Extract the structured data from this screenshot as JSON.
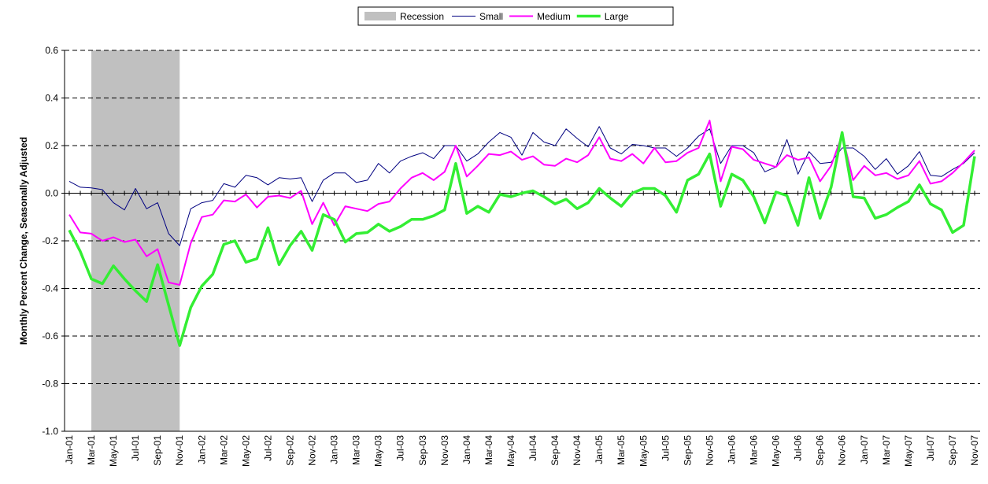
{
  "chart_data": {
    "type": "line",
    "ylabel": "Monthly Percent Change, Seasonally Adjusted",
    "categories": [
      "Jan-01",
      null,
      "Mar-01",
      null,
      "May-01",
      null,
      "Jul-01",
      null,
      "Sep-01",
      null,
      "Nov-01",
      null,
      "Jan-02",
      null,
      "Mar-02",
      null,
      "May-02",
      null,
      "Jul-02",
      null,
      "Sep-02",
      null,
      "Nov-02",
      null,
      "Jan-03",
      null,
      "Mar-03",
      null,
      "May-03",
      null,
      "Jul-03",
      null,
      "Sep-03",
      null,
      "Nov-03",
      null,
      "Jan-04",
      null,
      "Mar-04",
      null,
      "May-04",
      null,
      "Jul-04",
      null,
      "Sep-04",
      null,
      "Nov-04",
      null,
      "Jan-05",
      null,
      "Mar-05",
      null,
      "May-05",
      null,
      "Jul-05",
      null,
      "Sep-05",
      null,
      "Nov-05",
      null,
      "Jan-06",
      null,
      "Mar-06",
      null,
      "May-06",
      null,
      "Jul-06",
      null,
      "Sep-06",
      null,
      "Nov-06",
      null,
      "Jan-07",
      null,
      "Mar-07",
      null,
      "May-07",
      null,
      "Jul-07",
      null,
      "Sep-07",
      null,
      "Nov-07"
    ],
    "shading": {
      "name": "Recession",
      "color": "#c0c0c0",
      "start": "Mar-01",
      "end": "Nov-01"
    },
    "series": [
      {
        "name": "Small",
        "color": "#000080",
        "width": 1,
        "values": [
          0.05,
          0.025,
          0.022,
          0.015,
          -0.04,
          -0.07,
          0.02,
          -0.065,
          -0.04,
          -0.17,
          -0.22,
          -0.065,
          -0.04,
          -0.03,
          0.04,
          0.025,
          0.075,
          0.065,
          0.035,
          0.065,
          0.06,
          0.065,
          -0.035,
          0.055,
          0.085,
          0.085,
          0.045,
          0.055,
          0.125,
          0.085,
          0.135,
          0.155,
          0.17,
          0.145,
          0.2,
          0.2,
          0.135,
          0.165,
          0.215,
          0.255,
          0.235,
          0.16,
          0.255,
          0.215,
          0.2,
          0.27,
          0.23,
          0.195,
          0.28,
          0.19,
          0.165,
          0.205,
          0.2,
          0.19,
          0.19,
          0.155,
          0.19,
          0.24,
          0.27,
          0.125,
          0.2,
          0.2,
          0.17,
          0.09,
          0.11,
          0.225,
          0.08,
          0.175,
          0.125,
          0.13,
          0.19,
          0.19,
          0.155,
          0.1,
          0.145,
          0.08,
          0.115,
          0.175,
          0.075,
          0.07,
          0.1,
          0.125,
          0.17
        ]
      },
      {
        "name": "Medium",
        "color": "#ff00ff",
        "width": 2,
        "values": [
          -0.09,
          -0.165,
          -0.17,
          -0.2,
          -0.185,
          -0.205,
          -0.195,
          -0.265,
          -0.235,
          -0.375,
          -0.385,
          -0.21,
          -0.1,
          -0.09,
          -0.03,
          -0.035,
          -0.005,
          -0.06,
          -0.015,
          -0.01,
          -0.02,
          0.01,
          -0.13,
          -0.04,
          -0.135,
          -0.055,
          -0.065,
          -0.075,
          -0.045,
          -0.035,
          0.02,
          0.065,
          0.085,
          0.055,
          0.09,
          0.2,
          0.07,
          0.115,
          0.165,
          0.16,
          0.175,
          0.14,
          0.155,
          0.12,
          0.115,
          0.145,
          0.13,
          0.16,
          0.235,
          0.145,
          0.135,
          0.165,
          0.125,
          0.19,
          0.13,
          0.135,
          0.17,
          0.19,
          0.305,
          0.05,
          0.195,
          0.185,
          0.14,
          0.125,
          0.11,
          0.16,
          0.14,
          0.15,
          0.05,
          0.115,
          0.245,
          0.055,
          0.115,
          0.075,
          0.085,
          0.06,
          0.075,
          0.135,
          0.04,
          0.05,
          0.085,
          0.13,
          0.18
        ]
      },
      {
        "name": "Large",
        "color": "#33ee33",
        "width": 3.5,
        "values": [
          -0.155,
          -0.245,
          -0.36,
          -0.38,
          -0.305,
          -0.36,
          -0.41,
          -0.455,
          -0.3,
          -0.47,
          -0.64,
          -0.48,
          -0.39,
          -0.34,
          -0.215,
          -0.2,
          -0.29,
          -0.275,
          -0.145,
          -0.3,
          -0.22,
          -0.16,
          -0.24,
          -0.09,
          -0.11,
          -0.205,
          -0.17,
          -0.165,
          -0.13,
          -0.16,
          -0.14,
          -0.11,
          -0.11,
          -0.095,
          -0.07,
          0.125,
          -0.085,
          -0.055,
          -0.08,
          -0.005,
          -0.015,
          0.0,
          0.01,
          -0.015,
          -0.045,
          -0.025,
          -0.065,
          -0.04,
          0.02,
          -0.02,
          -0.055,
          0.0,
          0.02,
          0.02,
          -0.01,
          -0.08,
          0.055,
          0.08,
          0.165,
          -0.055,
          0.08,
          0.055,
          -0.015,
          -0.125,
          0.005,
          -0.01,
          -0.135,
          0.065,
          -0.105,
          0.025,
          0.255,
          -0.015,
          -0.02,
          -0.105,
          -0.09,
          -0.06,
          -0.035,
          0.035,
          -0.045,
          -0.07,
          -0.165,
          -0.135,
          0.155
        ]
      }
    ],
    "ylim": [
      -1.0,
      0.6
    ],
    "yticks": [
      {
        "value": -1.0,
        "label": "-1.0"
      },
      -0.8,
      -0.6,
      -0.4,
      -0.2,
      {
        "value": 0,
        "label": "0.0"
      },
      0.2,
      0.4,
      0.6
    ],
    "grid": true
  }
}
